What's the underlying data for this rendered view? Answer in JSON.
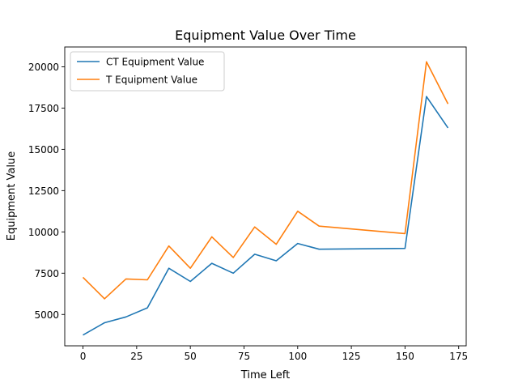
{
  "chart_data": {
    "type": "line",
    "title": "Equipment Value Over Time",
    "xlabel": "Time Left",
    "ylabel": "Equipment Value",
    "xlim": [
      -8.5,
      178.5
    ],
    "ylim": [
      3100,
      21200
    ],
    "xticks": [
      0,
      25,
      50,
      75,
      100,
      125,
      150,
      175
    ],
    "yticks": [
      5000,
      7500,
      10000,
      12500,
      15000,
      17500,
      20000
    ],
    "x": [
      0,
      10,
      20,
      30,
      40,
      50,
      60,
      70,
      80,
      90,
      100,
      110,
      150,
      160,
      170
    ],
    "series": [
      {
        "name": "CT Equipment Value",
        "color": "#1f77b4",
        "values": [
          3750,
          4500,
          4850,
          5400,
          7800,
          7000,
          8100,
          7500,
          8650,
          8250,
          9300,
          8950,
          9000,
          18200,
          16300
        ]
      },
      {
        "name": "T Equipment Value",
        "color": "#ff7f0e",
        "values": [
          7250,
          5950,
          7150,
          7100,
          9150,
          7800,
          9700,
          8450,
          10300,
          9250,
          11250,
          10350,
          9900,
          20300,
          17750
        ]
      }
    ],
    "legend_position": "top-left",
    "grid": false
  }
}
